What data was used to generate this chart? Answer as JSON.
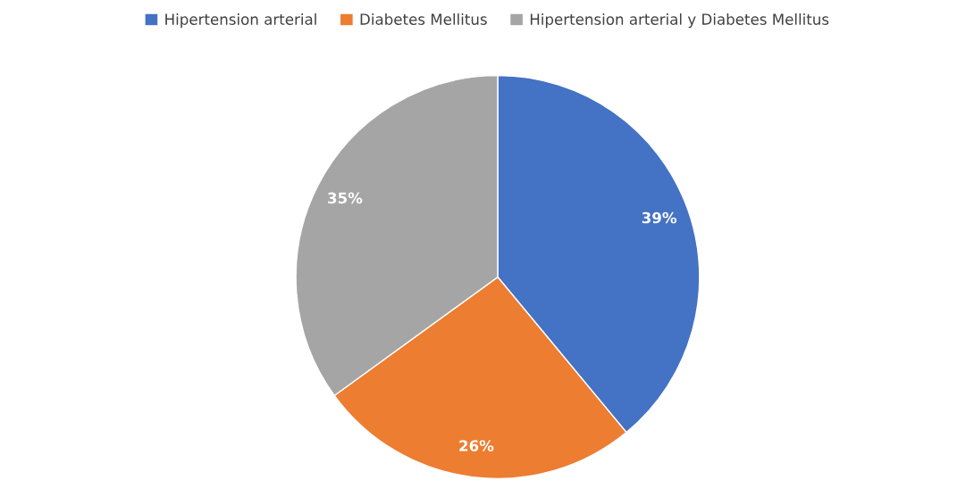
{
  "chart_data": {
    "type": "pie",
    "categories": [
      "Hipertension arterial",
      "Diabetes Mellitus",
      "Hipertension arterial y Diabetes Mellitus"
    ],
    "values": [
      39,
      26,
      35
    ],
    "colors": [
      "#4472c4",
      "#ed7d31",
      "#a5a5a5"
    ],
    "value_labels": [
      "39%",
      "26%",
      "35%"
    ],
    "legend": "top"
  }
}
